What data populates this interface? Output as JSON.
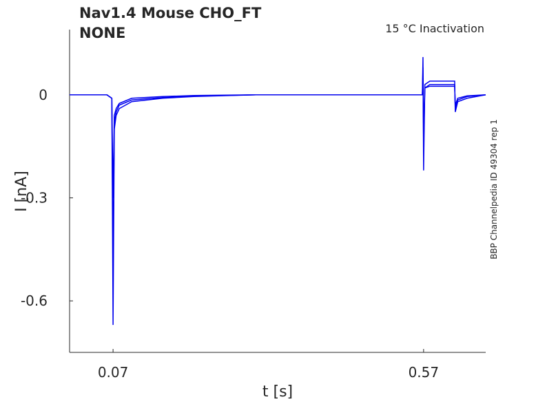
{
  "chart_data": {
    "type": "line",
    "title": "Nav1.4  Mouse  CHO_FT",
    "subtitle": "NONE",
    "annotation": "15 °C  Inactivation",
    "side_note": "BBP Channelpedia ID 49304 rep 1",
    "x_label": "t [s]",
    "y_label": "I [nA]",
    "x": [
      0,
      0.06,
      0.068,
      0.07,
      0.072,
      0.075,
      0.08,
      0.1,
      0.15,
      0.2,
      0.3,
      0.4,
      0.5,
      0.568,
      0.569,
      0.57,
      0.572,
      0.58,
      0.6,
      0.62,
      0.621,
      0.625,
      0.64,
      0.67
    ],
    "series": [
      {
        "color": "#0000ee",
        "values": [
          0,
          0,
          -0.01,
          -0.67,
          -0.1,
          -0.06,
          -0.04,
          -0.02,
          -0.01,
          -0.005,
          0,
          0,
          0,
          0,
          0.11,
          -0.22,
          0.03,
          0.04,
          0.04,
          0.04,
          -0.05,
          -0.02,
          -0.01,
          0
        ]
      },
      {
        "color": "#0000ee",
        "values": [
          0,
          0,
          -0.01,
          -0.5,
          -0.08,
          -0.05,
          -0.03,
          -0.015,
          -0.008,
          -0.004,
          0,
          0,
          0,
          0,
          0.08,
          -0.15,
          0.02,
          0.03,
          0.03,
          0.03,
          -0.04,
          -0.015,
          -0.005,
          0
        ]
      },
      {
        "color": "#0000ee",
        "values": [
          0,
          0,
          -0.01,
          -0.3,
          -0.06,
          -0.04,
          -0.025,
          -0.01,
          -0.005,
          -0.002,
          0,
          0,
          0,
          0,
          0.05,
          -0.1,
          0.02,
          0.025,
          0.025,
          0.025,
          -0.03,
          -0.01,
          -0.003,
          0
        ]
      }
    ],
    "xlim": [
      0,
      0.67
    ],
    "xticks": [
      0.07,
      0.57
    ],
    "ylim": [
      -0.75,
      0.19
    ],
    "yticks": [
      0,
      -0.3,
      -0.6
    ]
  }
}
